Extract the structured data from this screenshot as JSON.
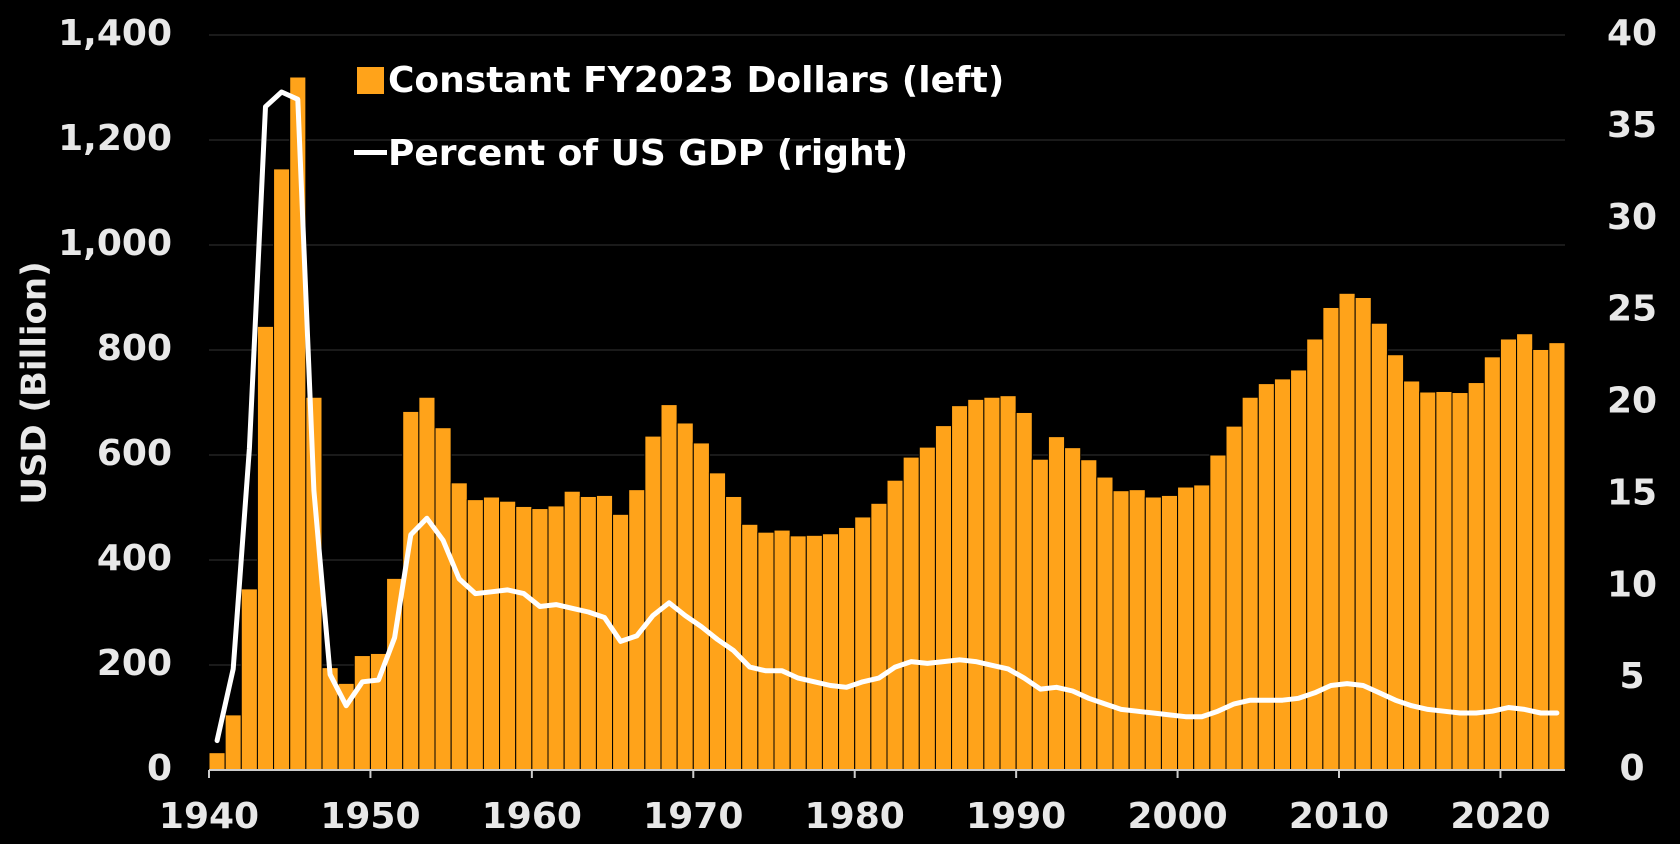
{
  "chart_data": {
    "type": "bar+line",
    "title": "",
    "legend": {
      "position": "top-left",
      "bar_label": "Constant FY2023 Dollars (left)",
      "line_label": "Percent of US GDP (right)"
    },
    "x_ticks": [
      "1940",
      "1950",
      "1960",
      "1970",
      "1980",
      "1990",
      "2000",
      "2010",
      "2020"
    ],
    "x_range": [
      1940,
      2023
    ],
    "y_left": {
      "label": "USD (Billion)",
      "range": [
        0,
        1400
      ],
      "ticks": [
        "0",
        "200",
        "400",
        "600",
        "800",
        "1,000",
        "1,200",
        "1,400"
      ]
    },
    "y_right": {
      "range": [
        0,
        40
      ],
      "ticks": [
        "0",
        "5",
        "10",
        "15",
        "20",
        "25",
        "30",
        "35",
        "40"
      ]
    },
    "grid": true,
    "years": [
      1940,
      1941,
      1942,
      1943,
      1944,
      1945,
      1946,
      1947,
      1948,
      1949,
      1950,
      1951,
      1952,
      1953,
      1954,
      1955,
      1956,
      1957,
      1958,
      1959,
      1960,
      1961,
      1962,
      1963,
      1964,
      1965,
      1966,
      1967,
      1968,
      1969,
      1970,
      1971,
      1972,
      1973,
      1974,
      1975,
      1976,
      1977,
      1978,
      1979,
      1980,
      1981,
      1982,
      1983,
      1984,
      1985,
      1986,
      1987,
      1988,
      1989,
      1990,
      1991,
      1992,
      1993,
      1994,
      1995,
      1996,
      1997,
      1998,
      1999,
      2000,
      2001,
      2002,
      2003,
      2004,
      2005,
      2006,
      2007,
      2008,
      2009,
      2010,
      2011,
      2012,
      2013,
      2014,
      2015,
      2016,
      2017,
      2018,
      2019,
      2020,
      2021,
      2022,
      2023
    ],
    "series": [
      {
        "name": "Constant FY2023 Dollars (left)",
        "axis": "left",
        "type": "bar",
        "color": "#FFA31A",
        "values": [
          33,
          105,
          345,
          845,
          1145,
          1320,
          710,
          195,
          165,
          218,
          222,
          365,
          683,
          710,
          652,
          547,
          515,
          520,
          512,
          502,
          498,
          503,
          531,
          521,
          523,
          487,
          534,
          636,
          696,
          661,
          623,
          566,
          521,
          468,
          453,
          457,
          446,
          447,
          450,
          462,
          482,
          508,
          552,
          596,
          615,
          656,
          694,
          706,
          710,
          713,
          681,
          592,
          635,
          614,
          591,
          558,
          532,
          534,
          520,
          523,
          539,
          543,
          600,
          655,
          710,
          736,
          745,
          762,
          821,
          881,
          908,
          900,
          851,
          791,
          741,
          720,
          721,
          719,
          738,
          787,
          821,
          831,
          801,
          814
        ]
      },
      {
        "name": "Percent of US GDP (right)",
        "axis": "right",
        "type": "line",
        "color": "#FFFFFF",
        "values": [
          1.6,
          5.5,
          17.5,
          36.1,
          36.9,
          36.5,
          15.2,
          5.2,
          3.5,
          4.8,
          4.9,
          7.2,
          12.8,
          13.7,
          12.5,
          10.4,
          9.6,
          9.7,
          9.8,
          9.6,
          8.9,
          9.0,
          8.8,
          8.6,
          8.3,
          7.0,
          7.3,
          8.4,
          9.1,
          8.4,
          7.8,
          7.1,
          6.5,
          5.6,
          5.4,
          5.4,
          5.0,
          4.8,
          4.6,
          4.5,
          4.8,
          5.0,
          5.6,
          5.9,
          5.8,
          5.9,
          6.0,
          5.9,
          5.7,
          5.5,
          5.0,
          4.4,
          4.5,
          4.3,
          3.9,
          3.6,
          3.3,
          3.2,
          3.1,
          3.0,
          2.9,
          2.9,
          3.2,
          3.6,
          3.8,
          3.8,
          3.8,
          3.9,
          4.2,
          4.6,
          4.7,
          4.6,
          4.2,
          3.8,
          3.5,
          3.3,
          3.2,
          3.1,
          3.1,
          3.2,
          3.4,
          3.3,
          3.1,
          3.1
        ]
      }
    ]
  }
}
